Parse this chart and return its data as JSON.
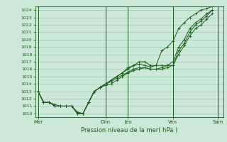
{
  "xlabel": "Pression niveau de la mer( hPa )",
  "background_color": "#cce8d8",
  "grid_color": "#99ccb3",
  "line_color": "#1a5c1a",
  "ylim": [
    1009.5,
    1024.5
  ],
  "yticks": [
    1010,
    1011,
    1012,
    1013,
    1014,
    1015,
    1016,
    1017,
    1018,
    1019,
    1020,
    1021,
    1022,
    1023,
    1024
  ],
  "day_labels": [
    "Mer",
    "Dim",
    "Jeu",
    "Ven",
    "Sam"
  ],
  "day_positions": [
    0,
    12,
    16,
    24,
    32
  ],
  "xlim": [
    -0.5,
    33
  ],
  "series1": [
    1013.0,
    1011.5,
    1011.5,
    1011.0,
    1011.0,
    1011.0,
    1011.0,
    1010.0,
    1010.0,
    1011.5,
    1013.0,
    1013.5,
    1014.0,
    1014.5,
    1015.0,
    1015.5,
    1016.0,
    1016.5,
    1017.0,
    1017.0,
    1016.5,
    1016.5,
    1018.5,
    1019.0,
    1019.8,
    1021.5,
    1022.3,
    1023.0,
    1023.5,
    1024.0,
    1024.2,
    1024.5
  ],
  "series2": [
    1013.0,
    1011.5,
    1011.5,
    1011.0,
    1011.0,
    1011.0,
    1011.0,
    1010.0,
    1010.0,
    1011.5,
    1013.0,
    1013.5,
    1014.0,
    1014.5,
    1015.0,
    1015.5,
    1016.2,
    1016.5,
    1016.7,
    1016.5,
    1016.3,
    1016.5,
    1016.5,
    1016.5,
    1017.0,
    1019.0,
    1020.0,
    1021.5,
    1022.3,
    1022.8,
    1023.5,
    1024.0
  ],
  "series3": [
    1013.0,
    1011.5,
    1011.5,
    1011.0,
    1011.0,
    1011.0,
    1011.0,
    1010.0,
    1010.0,
    1011.5,
    1013.0,
    1013.5,
    1014.0,
    1014.3,
    1014.8,
    1015.2,
    1015.6,
    1016.0,
    1016.2,
    1016.2,
    1016.0,
    1016.0,
    1016.2,
    1016.5,
    1016.5,
    1018.5,
    1019.5,
    1021.0,
    1022.0,
    1022.5,
    1023.2,
    1024.0
  ],
  "series4": [
    1013.0,
    1011.5,
    1011.5,
    1011.2,
    1011.0,
    1011.0,
    1011.0,
    1010.2,
    1010.0,
    1011.5,
    1013.0,
    1013.5,
    1013.8,
    1014.0,
    1014.5,
    1015.0,
    1015.5,
    1015.8,
    1016.0,
    1016.2,
    1016.0,
    1016.0,
    1016.0,
    1016.2,
    1016.5,
    1018.0,
    1019.2,
    1020.5,
    1021.5,
    1022.0,
    1022.8,
    1023.5
  ]
}
